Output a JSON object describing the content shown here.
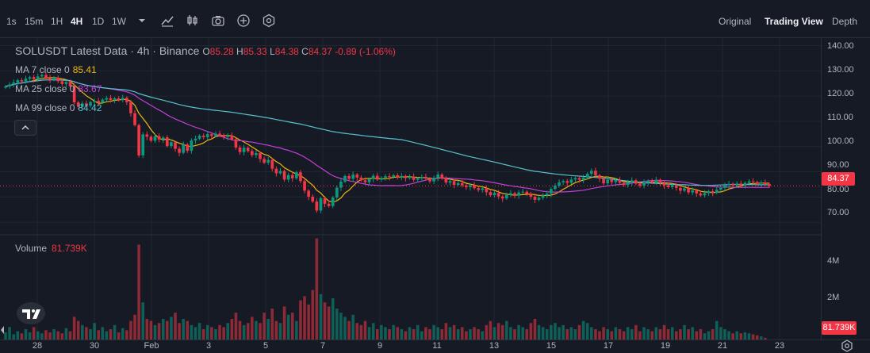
{
  "toolbar": {
    "timeframes": [
      {
        "label": "1s",
        "active": false
      },
      {
        "label": "15m",
        "active": false
      },
      {
        "label": "1H",
        "active": false
      },
      {
        "label": "4H",
        "active": true
      },
      {
        "label": "1D",
        "active": false
      },
      {
        "label": "1W",
        "active": false
      }
    ],
    "icons": [
      "chevron-down-icon",
      "indicators-icon",
      "chart-type-icon",
      "camera-icon",
      "plus-circle-icon",
      "settings-hex-icon"
    ],
    "view_tabs": [
      {
        "label": "Original",
        "active": false
      },
      {
        "label": "Trading View",
        "active": true
      },
      {
        "label": "Depth",
        "active": false
      }
    ]
  },
  "legend": {
    "symbol": "SOLUSDT Latest Data · 4h · Binance",
    "open_label": "O",
    "open": "85.28",
    "high_label": "H",
    "high": "85.33",
    "low_label": "L",
    "low": "84.38",
    "close_label": "C",
    "close": "84.37",
    "change": "-0.89 (-1.06%)",
    "ma": [
      {
        "label": "MA 7 close 0",
        "value": "85.41",
        "color": "#f0b90b"
      },
      {
        "label": "MA 25 close 0",
        "value": "83.67",
        "color": "#c23fd8"
      },
      {
        "label": "MA 99 close 0",
        "value": "84.42",
        "color": "#56c2cc"
      }
    ]
  },
  "volume_legend": {
    "label": "Volume",
    "value": "81.739K"
  },
  "price_axis": {
    "ticks": [
      "140.00",
      "130.00",
      "120.00",
      "110.00",
      "100.00",
      "90.00",
      "80.00",
      "70.00"
    ],
    "current_price": "84.37"
  },
  "volume_axis": {
    "ticks": [
      "4M",
      "2M"
    ],
    "current": "81.739K"
  },
  "time_axis": {
    "ticks": [
      "28",
      "30",
      "Feb",
      "3",
      "5",
      "7",
      "9",
      "11",
      "13",
      "15",
      "17",
      "19",
      "21",
      "23"
    ]
  },
  "colors": {
    "up": "#089981",
    "down": "#f23645",
    "background": "#161a25",
    "grid": "#22262f"
  },
  "chart_data": {
    "type": "candlestick",
    "symbol": "SOLUSDT",
    "interval": "4h",
    "ylim": [
      65,
      143
    ],
    "volume_ylim": [
      0,
      5000000
    ],
    "x_ticks": [
      "28",
      "30",
      "Feb",
      "3",
      "5",
      "7",
      "9",
      "11",
      "13",
      "15",
      "17",
      "19",
      "21",
      "23"
    ],
    "close": [
      123.8,
      124.6,
      125.4,
      126.3,
      125.8,
      126.9,
      127.5,
      126.7,
      127.8,
      128.4,
      127.2,
      126.5,
      127.3,
      125.9,
      124.8,
      125.6,
      123.9,
      117.5,
      115.8,
      117.1,
      116.2,
      117.6,
      118.1,
      117.4,
      118.6,
      119.2,
      118.5,
      119.1,
      118.4,
      119.3,
      117.6,
      113.2,
      108.5,
      96.5,
      104.8,
      103.9,
      102.3,
      104.1,
      102.8,
      103.6,
      100.2,
      101.7,
      99.1,
      97.5,
      100.8,
      98.3,
      102.4,
      103.1,
      104.3,
      103.7,
      104.9,
      104.2,
      105.1,
      104.6,
      103.8,
      104.4,
      102.9,
      99.6,
      97.8,
      99.5,
      98.2,
      96.6,
      97.4,
      95.1,
      93.6,
      94.7,
      91.2,
      89.4,
      90.3,
      86.9,
      88.7,
      87.4,
      89.8,
      86.3,
      82.5,
      80.1,
      78.2,
      74.6,
      79.5,
      77.3,
      76.4,
      79.8,
      83.7,
      86.1,
      88.3,
      87.2,
      88.9,
      87.7,
      86.6,
      85.8,
      87.1,
      88.4,
      86.9,
      87.6,
      88.2,
      87.9,
      88.6,
      87.8,
      88.3,
      87.5,
      88.1,
      86.8,
      87.4,
      88.0,
      87.3,
      86.2,
      87.6,
      88.9,
      87.4,
      85.7,
      86.3,
      84.8,
      85.5,
      84.6,
      83.9,
      84.7,
      83.5,
      82.8,
      83.4,
      81.9,
      80.7,
      81.6,
      80.2,
      79.4,
      80.8,
      81.5,
      80.6,
      81.8,
      82.1,
      81.2,
      80.1,
      78.9,
      79.7,
      80.6,
      81.3,
      83.2,
      84.5,
      85.8,
      86.3,
      85.6,
      86.9,
      87.5,
      86.8,
      87.7,
      89.2,
      90.4,
      88.6,
      87.3,
      85.4,
      86.8,
      85.9,
      86.7,
      85.6,
      84.8,
      85.9,
      86.6,
      85.3,
      84.5,
      85.8,
      86.4,
      85.7,
      86.8,
      85.5,
      84.6,
      83.9,
      84.7,
      83.6,
      82.5,
      83.4,
      81.8,
      82.6,
      81.4,
      80.6,
      81.5,
      82.3,
      81.7,
      82.9,
      83.6,
      84.8,
      85.2,
      84.6,
      85.3,
      84.7,
      85.6,
      86.2,
      85.9,
      85.3,
      85.7,
      85.1,
      84.37
    ],
    "volume_millions": [
      0.35,
      0.6,
      0.25,
      0.4,
      0.3,
      0.5,
      0.35,
      0.6,
      0.4,
      0.3,
      0.45,
      0.35,
      0.5,
      0.4,
      0.3,
      0.55,
      0.4,
      1.1,
      0.9,
      0.7,
      0.6,
      0.5,
      0.8,
      0.45,
      0.6,
      0.4,
      0.5,
      0.7,
      0.35,
      0.55,
      0.45,
      0.9,
      1.2,
      4.6,
      1.8,
      1.0,
      0.9,
      0.7,
      0.8,
      1.0,
      0.9,
      1.1,
      1.3,
      0.8,
      1.0,
      0.9,
      0.7,
      0.6,
      0.8,
      0.5,
      0.7,
      0.6,
      0.5,
      0.7,
      0.6,
      0.8,
      1.0,
      1.3,
      0.9,
      0.7,
      0.8,
      1.1,
      0.9,
      0.8,
      1.3,
      1.0,
      1.5,
      0.9,
      0.8,
      1.6,
      1.2,
      1.3,
      0.9,
      1.9,
      2.1,
      1.7,
      2.4,
      4.9,
      2.2,
      1.8,
      1.6,
      2.0,
      1.5,
      1.3,
      1.1,
      0.9,
      1.2,
      0.8,
      0.7,
      0.9,
      0.6,
      0.8,
      0.5,
      0.7,
      0.6,
      0.5,
      0.7,
      0.6,
      0.5,
      0.4,
      0.6,
      0.5,
      0.7,
      0.4,
      0.6,
      0.5,
      0.7,
      0.6,
      0.5,
      0.8,
      0.6,
      0.7,
      0.5,
      0.6,
      0.4,
      0.5,
      0.6,
      0.5,
      0.4,
      0.7,
      0.9,
      0.6,
      0.8,
      0.7,
      0.9,
      0.6,
      0.5,
      0.7,
      0.6,
      0.5,
      0.8,
      1.0,
      0.7,
      0.6,
      0.5,
      0.7,
      0.8,
      0.6,
      0.7,
      0.5,
      0.6,
      0.5,
      0.7,
      0.9,
      0.8,
      0.6,
      0.5,
      0.4,
      0.6,
      0.5,
      0.4,
      0.6,
      0.5,
      0.4,
      0.6,
      0.5,
      0.7,
      0.4,
      0.6,
      0.5,
      0.4,
      0.6,
      0.5,
      0.7,
      0.5,
      0.6,
      0.4,
      0.5,
      0.7,
      0.5,
      0.6,
      0.4,
      0.5,
      0.3,
      0.4,
      0.5,
      0.9,
      0.6,
      0.5,
      0.4,
      0.3,
      0.4,
      0.3,
      0.35,
      0.3,
      0.25,
      0.2,
      0.15,
      0.082
    ]
  }
}
